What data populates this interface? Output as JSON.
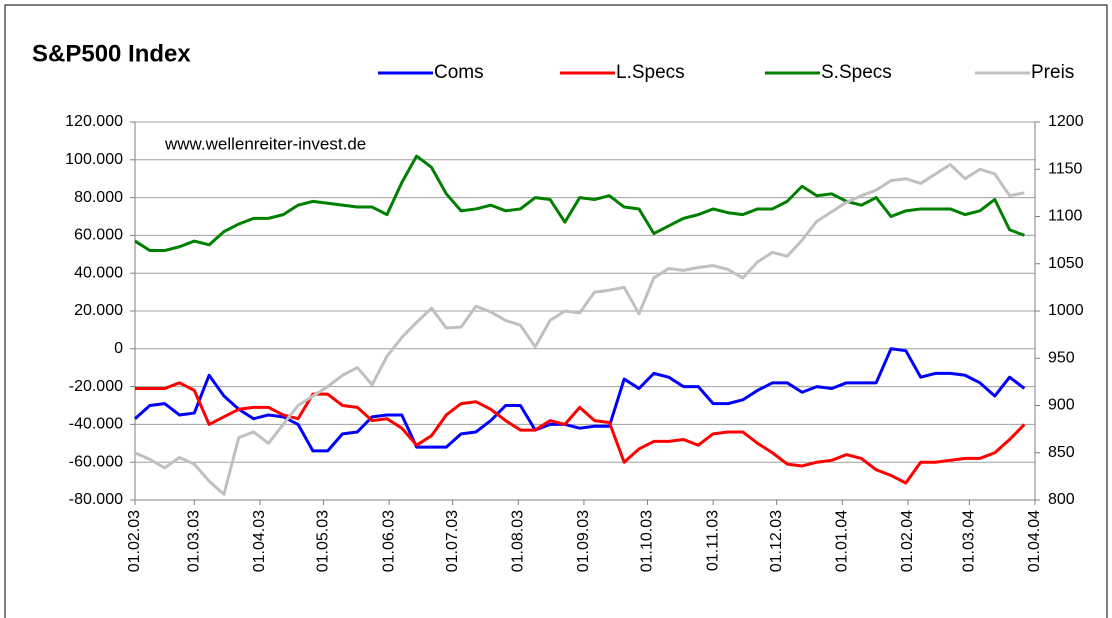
{
  "chart_data": {
    "type": "line",
    "title": "S&P500 Index",
    "annotation": "www.wellenreiter-invest.de",
    "x": [
      0,
      7,
      14,
      21,
      28,
      35,
      42,
      49,
      56,
      63,
      70,
      77,
      84,
      91,
      98,
      105,
      112,
      119,
      126,
      133,
      140,
      147,
      154,
      161,
      168,
      175,
      182,
      189,
      196,
      203,
      210,
      217,
      224,
      231,
      238,
      245,
      252,
      259,
      266,
      273,
      280,
      287,
      294,
      301,
      308,
      315,
      322,
      329,
      336,
      343,
      350,
      357,
      364,
      371,
      378,
      385,
      392,
      399,
      406,
      413,
      420
    ],
    "xlim": [
      0,
      425
    ],
    "xticks": [
      {
        "value": 0,
        "label": "01.02.03"
      },
      {
        "value": 28,
        "label": "01.03.03"
      },
      {
        "value": 59,
        "label": "01.04.03"
      },
      {
        "value": 89,
        "label": "01.05.03"
      },
      {
        "value": 120,
        "label": "01.06.03"
      },
      {
        "value": 150,
        "label": "01.07.03"
      },
      {
        "value": 181,
        "label": "01.08.03"
      },
      {
        "value": 212,
        "label": "01.09.03"
      },
      {
        "value": 242,
        "label": "01.10.03"
      },
      {
        "value": 273,
        "label": "01.11.03"
      },
      {
        "value": 303,
        "label": "01.12.03"
      },
      {
        "value": 334,
        "label": "01.01.04"
      },
      {
        "value": 365,
        "label": "01.02.04"
      },
      {
        "value": 394,
        "label": "01.03.04"
      },
      {
        "value": 425,
        "label": "01.04.04"
      }
    ],
    "ylim": [
      -80000,
      120000
    ],
    "yticks": [
      {
        "value": -80000,
        "label": "-80.000"
      },
      {
        "value": -60000,
        "label": "-60.000"
      },
      {
        "value": -40000,
        "label": "-40.000"
      },
      {
        "value": -20000,
        "label": "-20.000"
      },
      0,
      {
        "value": 20000,
        "label": "20.000"
      },
      {
        "value": 40000,
        "label": "40.000"
      },
      {
        "value": 60000,
        "label": "60.000"
      },
      {
        "value": 80000,
        "label": "80.000"
      },
      {
        "value": 100000,
        "label": "100.000"
      },
      {
        "value": 120000,
        "label": "120.000"
      }
    ],
    "y2lim": [
      800,
      1200
    ],
    "y2ticks": [
      800,
      850,
      900,
      950,
      1000,
      1050,
      1100,
      1150,
      1200
    ],
    "grid": true,
    "series": [
      {
        "name": "Coms",
        "color": "#0000ff",
        "values": [
          -37000,
          -30000,
          -29000,
          -35000,
          -34000,
          -14000,
          -25000,
          -32000,
          -37000,
          -35000,
          -36000,
          -40000,
          -54000,
          -54000,
          -45000,
          -44000,
          -36000,
          -35000,
          -35000,
          -52000,
          -52000,
          -52000,
          -45000,
          -44000,
          -38000,
          -30000,
          -30000,
          -43000,
          -40000,
          -40000,
          -42000,
          -41000,
          -41000,
          -16000,
          -21000,
          -13000,
          -15000,
          -20000,
          -20000,
          -29000,
          -29000,
          -27000,
          -22000,
          -18000,
          -18000,
          -23000,
          -20000,
          -21000,
          -18000,
          -18000,
          -18000,
          0,
          -1000,
          -15000,
          -13000,
          -13000,
          -14000,
          -18000,
          -25000,
          -15000,
          -21000
        ]
      },
      {
        "name": "L.Specs",
        "color": "#ff0000",
        "values": [
          -21000,
          -21000,
          -21000,
          -18000,
          -22000,
          -40000,
          -36000,
          -32000,
          -31000,
          -31000,
          -35000,
          -37000,
          -24000,
          -24000,
          -30000,
          -31000,
          -38000,
          -37000,
          -42000,
          -51000,
          -46000,
          -35000,
          -29000,
          -28000,
          -32000,
          -38000,
          -43000,
          -43000,
          -38000,
          -40000,
          -31000,
          -38000,
          -39000,
          -60000,
          -53000,
          -49000,
          -49000,
          -48000,
          -51000,
          -45000,
          -44000,
          -44000,
          -50000,
          -55000,
          -61000,
          -62000,
          -60000,
          -59000,
          -56000,
          -58000,
          -64000,
          -67000,
          -71000,
          -60000,
          -60000,
          -59000,
          -58000,
          -58000,
          -55000,
          -48000,
          -40000
        ]
      },
      {
        "name": "S.Specs",
        "color": "#008000",
        "values": [
          57000,
          52000,
          52000,
          54000,
          57000,
          55000,
          62000,
          66000,
          69000,
          69000,
          71000,
          76000,
          78000,
          77000,
          76000,
          75000,
          75000,
          71000,
          88000,
          102000,
          96000,
          82000,
          73000,
          74000,
          76000,
          73000,
          74000,
          80000,
          79000,
          67000,
          80000,
          79000,
          81000,
          75000,
          74000,
          61000,
          65000,
          69000,
          71000,
          74000,
          72000,
          71000,
          74000,
          74000,
          78000,
          86000,
          81000,
          82000,
          78000,
          76000,
          80000,
          70000,
          73000,
          74000,
          74000,
          74000,
          71000,
          73000,
          79000,
          63000,
          60000
        ]
      },
      {
        "name": "Preis",
        "color": "#c0c0c0",
        "axis": "y2",
        "values": [
          850,
          843,
          834,
          845,
          838,
          820,
          806,
          866,
          872,
          860,
          880,
          900,
          910,
          920,
          932,
          940,
          922,
          952,
          972,
          988,
          1003,
          982,
          983,
          1005,
          999,
          990,
          985,
          962,
          990,
          1000,
          998,
          1020,
          1022,
          1025,
          997,
          1035,
          1045,
          1043,
          1046,
          1048,
          1044,
          1035,
          1052,
          1062,
          1058,
          1075,
          1095,
          1105,
          1115,
          1122,
          1128,
          1138,
          1140,
          1135,
          1145,
          1155,
          1140,
          1150,
          1145,
          1122,
          1125
        ]
      }
    ]
  }
}
